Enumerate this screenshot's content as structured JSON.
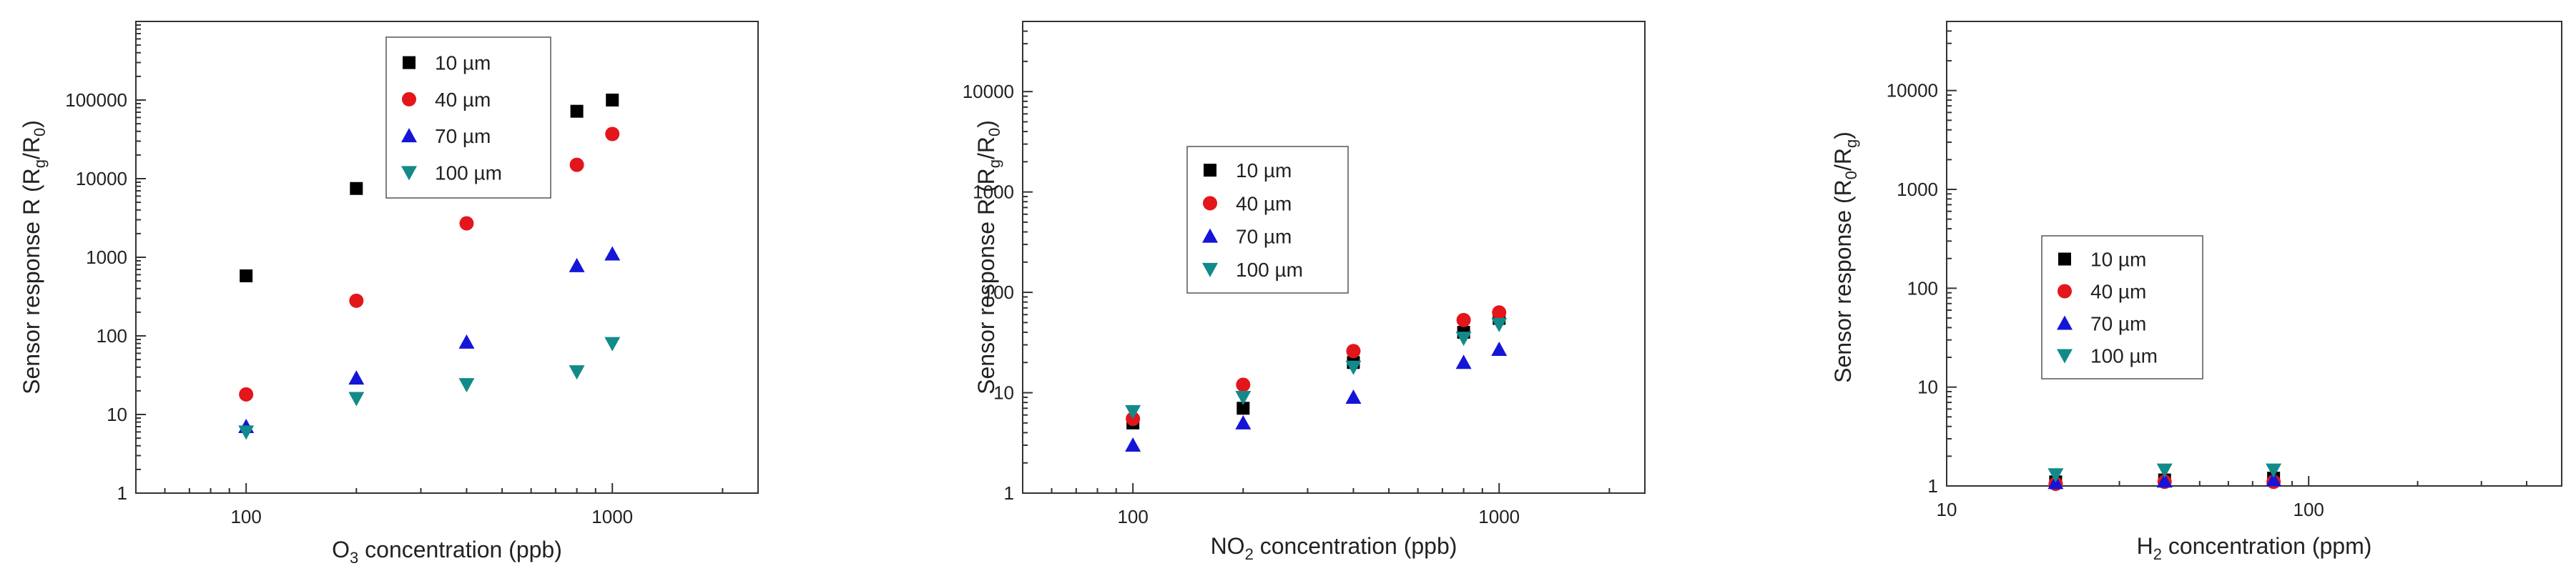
{
  "colors": {
    "s10": "#000000",
    "s40": "#e3161b",
    "s70": "#1515d8",
    "s100": "#138a8a"
  },
  "chart_data": [
    {
      "type": "scatter",
      "xscale": "log",
      "yscale": "log",
      "xlim": [
        50,
        2500
      ],
      "ylim": [
        1,
        1000000
      ],
      "xticks": [
        {
          "value": 100,
          "label": "100"
        },
        {
          "value": 1000,
          "label": "1000"
        }
      ],
      "yticks": [
        {
          "value": 1,
          "label": "1"
        },
        {
          "value": 10,
          "label": "10"
        },
        {
          "value": 100,
          "label": "100"
        },
        {
          "value": 1000,
          "label": "1000"
        },
        {
          "value": 10000,
          "label": "10000"
        },
        {
          "value": 100000,
          "label": "100000"
        }
      ],
      "xlabel": {
        "pre": "O",
        "sub": "3",
        "post": " concentration (ppb)"
      },
      "ylabel": {
        "pre": "Sensor response R (R",
        "sub1": "g",
        "mid": "/R",
        "sub2": "0",
        "post": ")"
      },
      "legend_position": "top-center",
      "series": [
        {
          "name": "10 µm",
          "marker": "square",
          "color": "#000000",
          "x": [
            100,
            200,
            800,
            1000
          ],
          "y": [
            580,
            7500,
            72000,
            100000
          ]
        },
        {
          "name": "40 µm",
          "marker": "circle",
          "color": "#e3161b",
          "x": [
            100,
            200,
            400,
            800,
            1000
          ],
          "y": [
            18,
            280,
            2700,
            15000,
            37000
          ]
        },
        {
          "name": "70 µm",
          "marker": "triangle-up",
          "color": "#1515d8",
          "x": [
            100,
            200,
            400,
            800,
            1000
          ],
          "y": [
            7,
            29,
            83,
            780,
            1100
          ]
        },
        {
          "name": "100 µm",
          "marker": "triangle-down",
          "color": "#138a8a",
          "x": [
            100,
            200,
            400,
            800,
            1000
          ],
          "y": [
            6,
            16,
            24,
            35,
            80
          ]
        }
      ]
    },
    {
      "type": "scatter",
      "xscale": "log",
      "yscale": "log",
      "xlim": [
        50,
        2500
      ],
      "ylim": [
        1,
        50000
      ],
      "xticks": [
        {
          "value": 100,
          "label": "100"
        },
        {
          "value": 1000,
          "label": "1000"
        }
      ],
      "yticks": [
        {
          "value": 1,
          "label": "1"
        },
        {
          "value": 10,
          "label": "10"
        },
        {
          "value": 100,
          "label": "100"
        },
        {
          "value": 1000,
          "label": "1000"
        },
        {
          "value": 10000,
          "label": "10000"
        }
      ],
      "xlabel": {
        "pre": "NO",
        "sub": "2",
        "post": " concentration (ppb)"
      },
      "ylabel": {
        "pre": "Sensor response R (R",
        "sub1": "g",
        "mid": "/R",
        "sub2": "0",
        "post": ")"
      },
      "legend_position": "upper-left",
      "series": [
        {
          "name": "10 µm",
          "marker": "square",
          "color": "#000000",
          "x": [
            100,
            200,
            400,
            800,
            1000
          ],
          "y": [
            5,
            7,
            20,
            40,
            55
          ]
        },
        {
          "name": "40 µm",
          "marker": "circle",
          "color": "#e3161b",
          "x": [
            100,
            200,
            400,
            800,
            1000
          ],
          "y": [
            5.5,
            12,
            26,
            53,
            63
          ]
        },
        {
          "name": "70 µm",
          "marker": "triangle-up",
          "color": "#1515d8",
          "x": [
            100,
            200,
            400,
            800,
            1000
          ],
          "y": [
            3,
            5,
            9,
            20,
            27
          ]
        },
        {
          "name": "100 µm",
          "marker": "triangle-down",
          "color": "#138a8a",
          "x": [
            100,
            200,
            400,
            800,
            1000
          ],
          "y": [
            6.5,
            9,
            18,
            35,
            48
          ]
        }
      ]
    },
    {
      "type": "scatter",
      "xscale": "log",
      "yscale": "log",
      "xlim": [
        10,
        500
      ],
      "ylim": [
        1,
        50000
      ],
      "xticks": [
        {
          "value": 10,
          "label": "10"
        },
        {
          "value": 100,
          "label": "100"
        }
      ],
      "yticks": [
        {
          "value": 1,
          "label": "1"
        },
        {
          "value": 10,
          "label": "10"
        },
        {
          "value": 100,
          "label": "100"
        },
        {
          "value": 1000,
          "label": "1000"
        },
        {
          "value": 10000,
          "label": "10000"
        }
      ],
      "xlabel": {
        "pre": "H",
        "sub": "2",
        "post": " concentration (ppm)"
      },
      "ylabel": {
        "pre": "Sensor response (R",
        "sub1": "0",
        "mid": "/R",
        "sub2": "g",
        "post": ")"
      },
      "legend_position": "center-left",
      "series": [
        {
          "name": "10 µm",
          "marker": "square",
          "color": "#000000",
          "x": [
            20,
            40,
            80
          ],
          "y": [
            1.1,
            1.15,
            1.2
          ]
        },
        {
          "name": "40 µm",
          "marker": "circle",
          "color": "#e3161b",
          "x": [
            20,
            40,
            80
          ],
          "y": [
            1.05,
            1.1,
            1.1
          ]
        },
        {
          "name": "70 µm",
          "marker": "triangle-up",
          "color": "#1515d8",
          "x": [
            20,
            40,
            80
          ],
          "y": [
            1.08,
            1.12,
            1.15
          ]
        },
        {
          "name": "100 µm",
          "marker": "triangle-down",
          "color": "#138a8a",
          "x": [
            20,
            40,
            80
          ],
          "y": [
            1.3,
            1.45,
            1.45
          ]
        }
      ]
    }
  ]
}
